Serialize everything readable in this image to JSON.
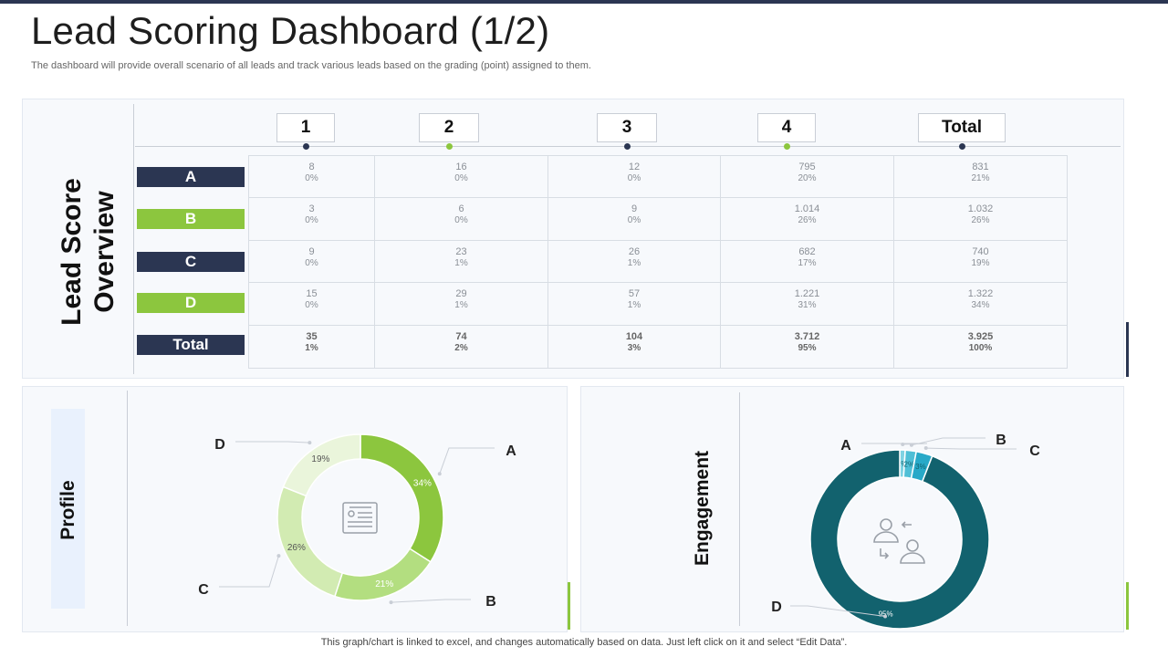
{
  "header": {
    "title": "Lead Scoring Dashboard (1/2)",
    "subtitle": "The dashboard will provide overall scenario of all leads and track various leads based on the grading (point) assigned to them."
  },
  "overview": {
    "title_line1": "Lead Score",
    "title_line2": "Overview",
    "columns": [
      "1",
      "2",
      "3",
      "4",
      "Total"
    ],
    "rows": [
      {
        "label": "A",
        "color": "#2b3652",
        "cells": [
          {
            "v": "8",
            "p": "0%"
          },
          {
            "v": "16",
            "p": "0%"
          },
          {
            "v": "12",
            "p": "0%"
          },
          {
            "v": "795",
            "p": "20%"
          },
          {
            "v": "831",
            "p": "21%"
          }
        ]
      },
      {
        "label": "B",
        "color": "#8cc63e",
        "cells": [
          {
            "v": "3",
            "p": "0%"
          },
          {
            "v": "6",
            "p": "0%"
          },
          {
            "v": "9",
            "p": "0%"
          },
          {
            "v": "1.014",
            "p": "26%"
          },
          {
            "v": "1.032",
            "p": "26%"
          }
        ]
      },
      {
        "label": "C",
        "color": "#2b3652",
        "cells": [
          {
            "v": "9",
            "p": "0%"
          },
          {
            "v": "23",
            "p": "1%"
          },
          {
            "v": "26",
            "p": "1%"
          },
          {
            "v": "682",
            "p": "17%"
          },
          {
            "v": "740",
            "p": "19%"
          }
        ]
      },
      {
        "label": "D",
        "color": "#8cc63e",
        "cells": [
          {
            "v": "15",
            "p": "0%"
          },
          {
            "v": "29",
            "p": "1%"
          },
          {
            "v": "57",
            "p": "1%"
          },
          {
            "v": "1.221",
            "p": "31%"
          },
          {
            "v": "1.322",
            "p": "34%"
          }
        ]
      },
      {
        "label": "Total",
        "color": "#2b3652",
        "cells": [
          {
            "v": "35",
            "p": "1%"
          },
          {
            "v": "74",
            "p": "2%"
          },
          {
            "v": "104",
            "p": "3%"
          },
          {
            "v": "3.712",
            "p": "95%"
          },
          {
            "v": "3.925",
            "p": "100%"
          }
        ]
      }
    ]
  },
  "profile": {
    "title": "Profile",
    "icon": "id-card-icon"
  },
  "engagement": {
    "title": "Engagement",
    "icon": "user-exchange-icon"
  },
  "chart_data": [
    {
      "type": "pie",
      "title": "Profile",
      "categories": [
        "A",
        "B",
        "C",
        "D"
      ],
      "values": [
        34,
        21,
        26,
        19
      ],
      "labels": [
        "34%",
        "21%",
        "26%",
        "19%"
      ],
      "colors": [
        "#8cc63e",
        "#b3de80",
        "#d2ebb2",
        "#eaf5db"
      ],
      "hole": "donut"
    },
    {
      "type": "pie",
      "title": "Engagement",
      "categories": [
        "A",
        "B",
        "C",
        "D"
      ],
      "values": [
        1,
        2,
        3,
        95
      ],
      "labels": [
        "1%",
        "2%",
        "3%",
        "95%"
      ],
      "colors": [
        "#7fd3e3",
        "#4fbfd6",
        "#28a9c8",
        "#12626e"
      ],
      "hole": "donut"
    }
  ],
  "footer": {
    "note": "This graph/chart is linked to excel,  and changes automatically based on data. Just left click on it and select “Edit Data”."
  }
}
